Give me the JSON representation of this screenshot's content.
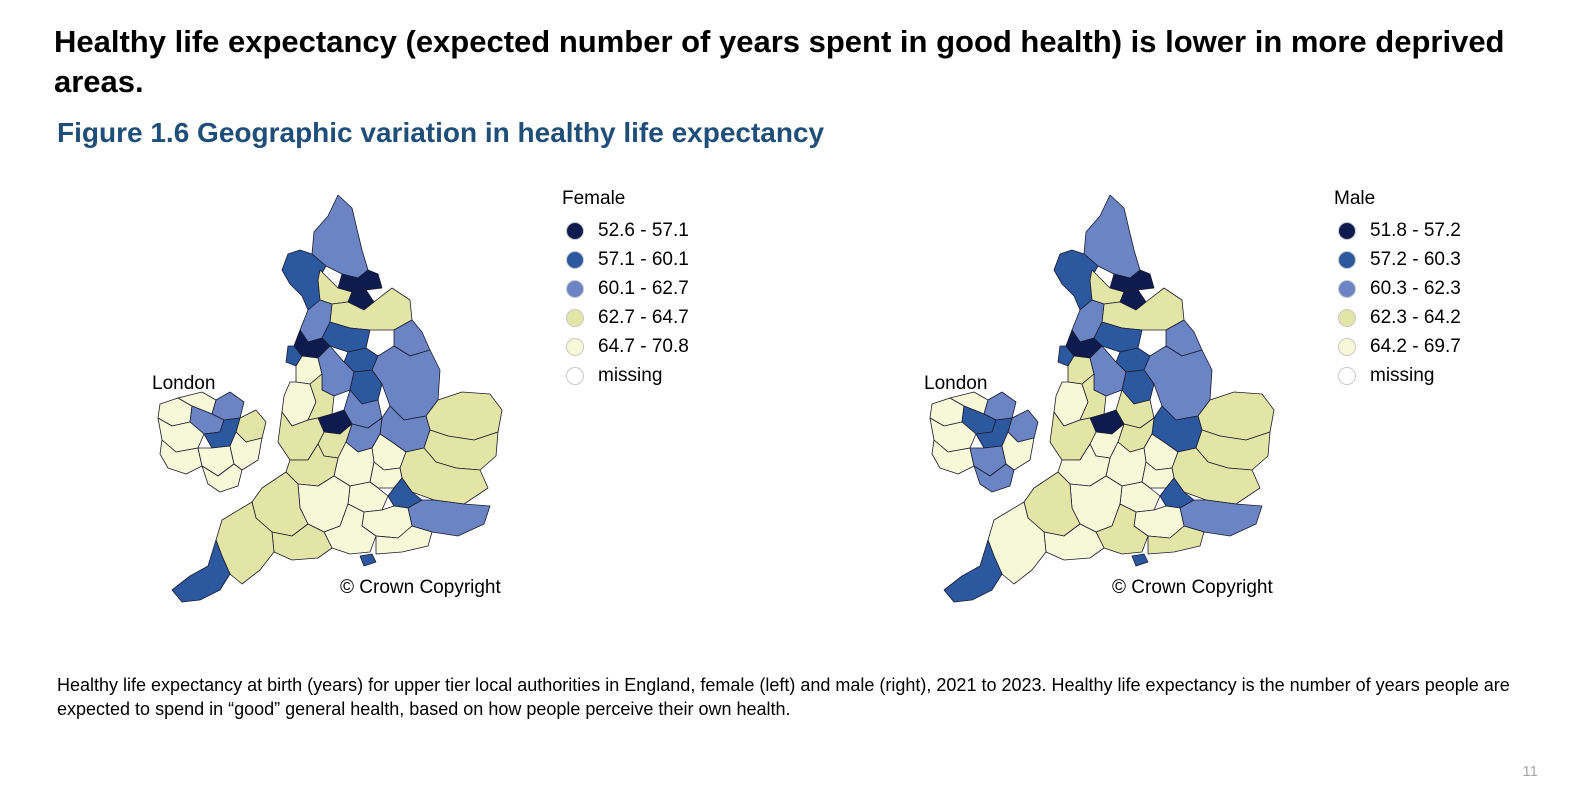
{
  "slide": {
    "headline": "Healthy life expectancy (expected number of years spent in good health) is lower in more deprived areas.",
    "figure_title": "Figure 1.6 Geographic variation in healthy life expectancy",
    "caption": "Healthy life expectancy at birth (years) for upper tier local authorities in England, female (left) and male (right), 2021 to 2023. Healthy life expectancy is the number of years people are expected to spend in “good” general health, based on how people perceive their own health.",
    "page_number": "11"
  },
  "maps": [
    {
      "id": "female",
      "legend_title": "Female",
      "inset_label": "London",
      "copyright": "© Crown Copyright",
      "classes": [
        {
          "label": "52.6 - 57.1",
          "color": "#0d1b4f"
        },
        {
          "label": "57.1 - 60.1",
          "color": "#2c58a0"
        },
        {
          "label": "60.1 - 62.7",
          "color": "#6b84c3"
        },
        {
          "label": "62.7 - 64.7",
          "color": "#e3e5a6"
        },
        {
          "label": "64.7 - 70.8",
          "color": "#f6f8d8"
        },
        {
          "label": "missing",
          "color": "#ffffff"
        }
      ]
    },
    {
      "id": "male",
      "legend_title": "Male",
      "inset_label": "London",
      "copyright": "© Crown Copyright",
      "classes": [
        {
          "label": "51.8 - 57.2",
          "color": "#0d1b4f"
        },
        {
          "label": "57.2 - 60.3",
          "color": "#2c58a0"
        },
        {
          "label": "60.3 - 62.3",
          "color": "#6b84c3"
        },
        {
          "label": "62.3 - 64.2",
          "color": "#e3e5a6"
        },
        {
          "label": "64.2 - 69.7",
          "color": "#f6f8d8"
        },
        {
          "label": "missing",
          "color": "#ffffff"
        }
      ]
    }
  ]
}
